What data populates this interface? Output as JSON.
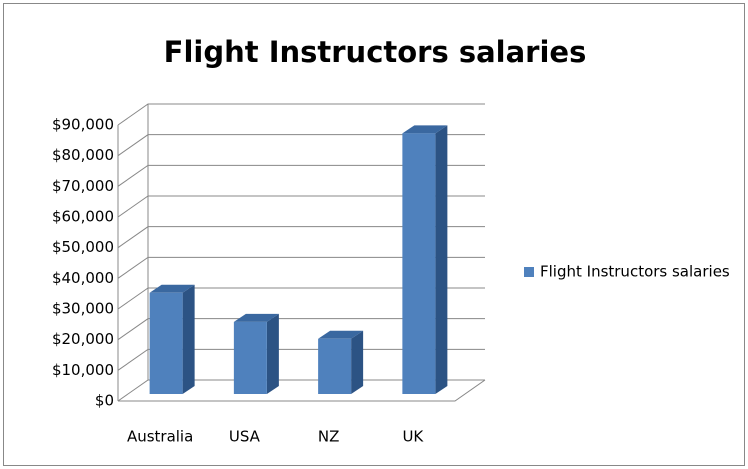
{
  "chart_data": {
    "type": "bar3d",
    "title": "Flight Instructors salaries",
    "categories": [
      "Australia",
      "USA",
      "NZ",
      "UK"
    ],
    "series": [
      {
        "name": "Flight Instructors salaries",
        "color": "#4f81bd",
        "values": [
          33000,
          23500,
          18000,
          85000
        ]
      }
    ],
    "ylim": [
      0,
      90000
    ],
    "yticks": [
      {
        "value": 0,
        "label": "$0"
      },
      {
        "value": 10000,
        "label": "$10,000"
      },
      {
        "value": 20000,
        "label": "$20,000"
      },
      {
        "value": 30000,
        "label": "$30,000"
      },
      {
        "value": 40000,
        "label": "$40,000"
      },
      {
        "value": 50000,
        "label": "$50,000"
      },
      {
        "value": 60000,
        "label": "$60,000"
      },
      {
        "value": 70000,
        "label": "$70,000"
      },
      {
        "value": 80000,
        "label": "$80,000"
      },
      {
        "value": 90000,
        "label": "$90,000"
      }
    ],
    "grid": true,
    "legend": "right"
  }
}
